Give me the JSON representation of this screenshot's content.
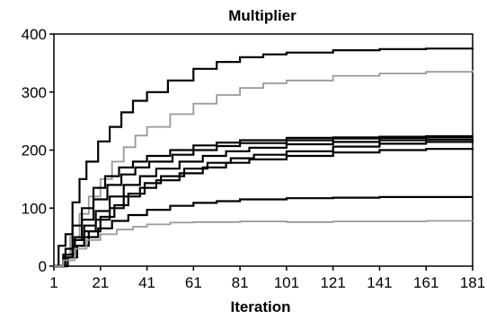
{
  "chart_data": {
    "type": "line",
    "title": "Multiplier",
    "xlabel": "Iteration",
    "ylabel": "",
    "xlim": [
      1,
      181
    ],
    "ylim": [
      0,
      400
    ],
    "x_ticks": [
      1,
      21,
      41,
      61,
      81,
      101,
      121,
      141,
      161,
      181
    ],
    "y_ticks": [
      0,
      100,
      200,
      300,
      400
    ],
    "grid": false,
    "legend": "none",
    "series": [
      {
        "color": "#000000",
        "points": [
          [
            1,
            0
          ],
          [
            3,
            35
          ],
          [
            6,
            55
          ],
          [
            9,
            110
          ],
          [
            12,
            150
          ],
          [
            15,
            180
          ],
          [
            20,
            215
          ],
          [
            25,
            240
          ],
          [
            30,
            265
          ],
          [
            35,
            285
          ],
          [
            41,
            300
          ],
          [
            50,
            320
          ],
          [
            61,
            340
          ],
          [
            71,
            352
          ],
          [
            81,
            360
          ],
          [
            91,
            365
          ],
          [
            101,
            368
          ],
          [
            121,
            372
          ],
          [
            141,
            374
          ],
          [
            161,
            375
          ],
          [
            181,
            376
          ]
        ]
      },
      {
        "color": "#999999",
        "points": [
          [
            1,
            0
          ],
          [
            5,
            20
          ],
          [
            8,
            50
          ],
          [
            12,
            90
          ],
          [
            16,
            120
          ],
          [
            21,
            150
          ],
          [
            26,
            180
          ],
          [
            31,
            205
          ],
          [
            36,
            225
          ],
          [
            41,
            240
          ],
          [
            51,
            262
          ],
          [
            61,
            280
          ],
          [
            71,
            295
          ],
          [
            81,
            307
          ],
          [
            91,
            315
          ],
          [
            101,
            320
          ],
          [
            121,
            328
          ],
          [
            141,
            332
          ],
          [
            161,
            335
          ],
          [
            181,
            338
          ]
        ]
      },
      {
        "color": "#000000",
        "points": [
          [
            1,
            0
          ],
          [
            6,
            30
          ],
          [
            9,
            70
          ],
          [
            13,
            100
          ],
          [
            18,
            135
          ],
          [
            23,
            155
          ],
          [
            29,
            170
          ],
          [
            35,
            180
          ],
          [
            41,
            190
          ],
          [
            51,
            200
          ],
          [
            61,
            208
          ],
          [
            71,
            213
          ],
          [
            81,
            217
          ],
          [
            101,
            221
          ],
          [
            121,
            222
          ],
          [
            141,
            223
          ],
          [
            161,
            224
          ],
          [
            181,
            225
          ]
        ]
      },
      {
        "color": "#000000",
        "points": [
          [
            1,
            0
          ],
          [
            5,
            20
          ],
          [
            9,
            45
          ],
          [
            13,
            80
          ],
          [
            18,
            115
          ],
          [
            24,
            140
          ],
          [
            30,
            158
          ],
          [
            36,
            170
          ],
          [
            42,
            180
          ],
          [
            52,
            192
          ],
          [
            61,
            200
          ],
          [
            71,
            207
          ],
          [
            81,
            212
          ],
          [
            101,
            217
          ],
          [
            121,
            220
          ],
          [
            141,
            221
          ],
          [
            161,
            222
          ],
          [
            181,
            222
          ]
        ]
      },
      {
        "color": "#000000",
        "points": [
          [
            1,
            0
          ],
          [
            6,
            20
          ],
          [
            10,
            50
          ],
          [
            14,
            70
          ],
          [
            19,
            95
          ],
          [
            25,
            120
          ],
          [
            31,
            140
          ],
          [
            38,
            155
          ],
          [
            45,
            168
          ],
          [
            55,
            180
          ],
          [
            65,
            190
          ],
          [
            75,
            198
          ],
          [
            85,
            204
          ],
          [
            101,
            210
          ],
          [
            121,
            214
          ],
          [
            141,
            217
          ],
          [
            161,
            218
          ],
          [
            181,
            220
          ]
        ]
      },
      {
        "color": "#000000",
        "points": [
          [
            1,
            0
          ],
          [
            7,
            15
          ],
          [
            11,
            35
          ],
          [
            16,
            60
          ],
          [
            21,
            85
          ],
          [
            27,
            105
          ],
          [
            33,
            125
          ],
          [
            40,
            143
          ],
          [
            47,
            155
          ],
          [
            57,
            168
          ],
          [
            67,
            178
          ],
          [
            77,
            186
          ],
          [
            87,
            192
          ],
          [
            101,
            198
          ],
          [
            121,
            206
          ],
          [
            141,
            211
          ],
          [
            161,
            214
          ],
          [
            181,
            216
          ]
        ]
      },
      {
        "color": "#000000",
        "points": [
          [
            1,
            0
          ],
          [
            6,
            20
          ],
          [
            10,
            45
          ],
          [
            14,
            60
          ],
          [
            19,
            80
          ],
          [
            25,
            100
          ],
          [
            31,
            120
          ],
          [
            38,
            135
          ],
          [
            45,
            148
          ],
          [
            55,
            160
          ],
          [
            65,
            170
          ],
          [
            75,
            178
          ],
          [
            85,
            184
          ],
          [
            101,
            190
          ],
          [
            121,
            196
          ],
          [
            141,
            200
          ],
          [
            161,
            202
          ],
          [
            181,
            203
          ]
        ]
      },
      {
        "color": "#000000",
        "points": [
          [
            1,
            0
          ],
          [
            5,
            15
          ],
          [
            9,
            35
          ],
          [
            14,
            50
          ],
          [
            20,
            65
          ],
          [
            26,
            78
          ],
          [
            33,
            88
          ],
          [
            41,
            97
          ],
          [
            51,
            104
          ],
          [
            61,
            109
          ],
          [
            71,
            112
          ],
          [
            81,
            115
          ],
          [
            101,
            117
          ],
          [
            121,
            118
          ],
          [
            141,
            119
          ],
          [
            161,
            119
          ],
          [
            181,
            119
          ]
        ]
      },
      {
        "color": "#999999",
        "points": [
          [
            1,
            0
          ],
          [
            5,
            10
          ],
          [
            10,
            30
          ],
          [
            15,
            45
          ],
          [
            21,
            55
          ],
          [
            28,
            63
          ],
          [
            35,
            68
          ],
          [
            41,
            72
          ],
          [
            51,
            75
          ],
          [
            61,
            76
          ],
          [
            71,
            76
          ],
          [
            81,
            77
          ],
          [
            101,
            76
          ],
          [
            121,
            77
          ],
          [
            141,
            77
          ],
          [
            161,
            78
          ],
          [
            181,
            78
          ]
        ]
      }
    ]
  }
}
